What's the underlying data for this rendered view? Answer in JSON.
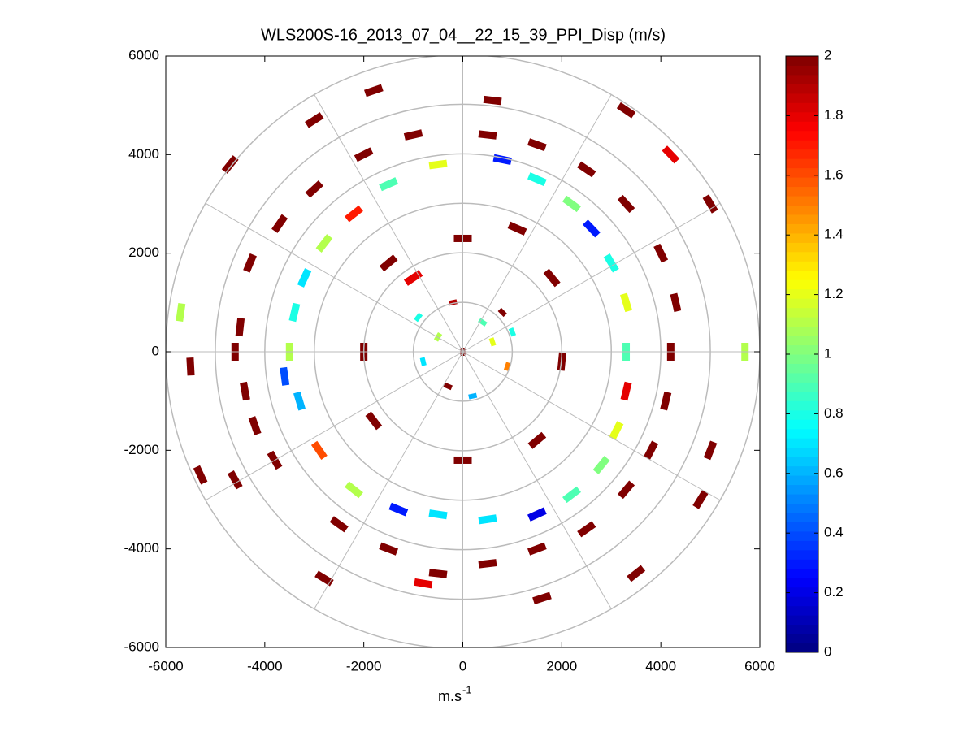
{
  "chart_data": {
    "type": "polar-heatmap",
    "title": "WLS200S-16_2013_07_04__22_15_39_PPI_Disp (m/s)",
    "xlabel": {
      "text": "m.s",
      "superscript": "-1"
    },
    "xlim": [
      -6000,
      6000
    ],
    "ylim": [
      -6000,
      6000
    ],
    "xticks": [
      -6000,
      -4000,
      -2000,
      0,
      2000,
      4000,
      6000
    ],
    "yticks": [
      -6000,
      -4000,
      -2000,
      0,
      2000,
      4000,
      6000
    ],
    "polar_grid": true,
    "colormap": "jet",
    "clim": [
      0,
      2
    ],
    "cticks": [
      0,
      0.2,
      0.4,
      0.6,
      0.8,
      1,
      1.2,
      1.4,
      1.6,
      1.8,
      2
    ],
    "x": [
      -4500,
      -4600,
      -4400,
      -4200,
      -3800,
      -4300,
      -3700,
      -3000,
      -2000,
      -1000,
      500,
      1500,
      2500,
      3300,
      4000,
      4300,
      4200,
      4100,
      3800,
      3300,
      2500,
      1500,
      500,
      -500,
      -1500,
      -2500,
      -3500,
      -3400,
      -3200,
      -2800,
      -2200,
      -1500,
      -500,
      800,
      1500,
      2200,
      2600,
      3000,
      3300,
      3300,
      3300,
      3100,
      2800,
      2200,
      1500,
      500,
      -500,
      -1300,
      -2200,
      -2900,
      -3300,
      -3600,
      -5500,
      -5700,
      -5300,
      -4700,
      -3000,
      -1800,
      600,
      3300,
      4200,
      5000,
      5700,
      5000,
      4800,
      3500,
      1600,
      -800,
      -2800,
      -4600,
      -2000,
      -1500,
      0,
      1800,
      2000,
      1500,
      0,
      -1800,
      -1000,
      1100,
      0,
      -500,
      400,
      -800,
      900,
      200,
      -300,
      600,
      -900,
      800,
      -200,
      1000
    ],
    "y": [
      500,
      0,
      -800,
      -1500,
      -2200,
      1800,
      2600,
      3300,
      4000,
      4400,
      4400,
      4200,
      3700,
      3000,
      2000,
      1000,
      0,
      -1000,
      -2000,
      -2800,
      -3600,
      -4000,
      -4300,
      -4500,
      -4000,
      -3500,
      0,
      800,
      1500,
      2200,
      2800,
      3400,
      3800,
      3900,
      3500,
      3000,
      2500,
      1800,
      1000,
      0,
      -800,
      -1600,
      -2300,
      -2900,
      -3300,
      -3400,
      -3300,
      -3200,
      -2800,
      -2000,
      -1000,
      -500,
      -300,
      800,
      -2500,
      3800,
      4700,
      5300,
      5100,
      4900,
      4000,
      3000,
      0,
      -2000,
      -3000,
      -4500,
      -5000,
      -4700,
      -4600,
      -2600,
      0,
      1800,
      2300,
      1500,
      -200,
      -1800,
      -2200,
      -1400,
      1500,
      2500,
      0,
      300,
      600,
      -200,
      -300,
      -900,
      -700,
      200,
      700,
      800,
      1000,
      400
    ],
    "values": [
      2,
      2,
      2,
      2,
      2,
      2,
      2,
      2,
      2,
      2,
      2,
      2,
      2,
      2,
      2,
      2,
      2,
      2,
      2,
      2,
      2,
      2,
      2,
      2,
      2,
      2,
      1.1,
      0.8,
      0.7,
      1.1,
      1.7,
      0.9,
      1.2,
      0.3,
      0.8,
      1.0,
      0.3,
      0.8,
      1.2,
      0.9,
      1.8,
      1.2,
      1.0,
      0.9,
      0.2,
      0.7,
      0.7,
      0.3,
      1.1,
      1.6,
      0.6,
      0.4,
      2,
      1.1,
      2,
      2,
      2,
      2,
      2,
      2,
      1.8,
      2,
      1.1,
      2,
      2,
      2,
      2,
      1.8,
      2,
      2,
      2,
      2,
      2,
      2,
      2,
      2,
      2,
      2,
      1.8,
      2,
      2,
      1.1,
      0.9,
      0.7,
      1.5,
      0.6,
      2,
      1.2,
      0.8,
      2,
      1.9,
      0.8
    ]
  }
}
